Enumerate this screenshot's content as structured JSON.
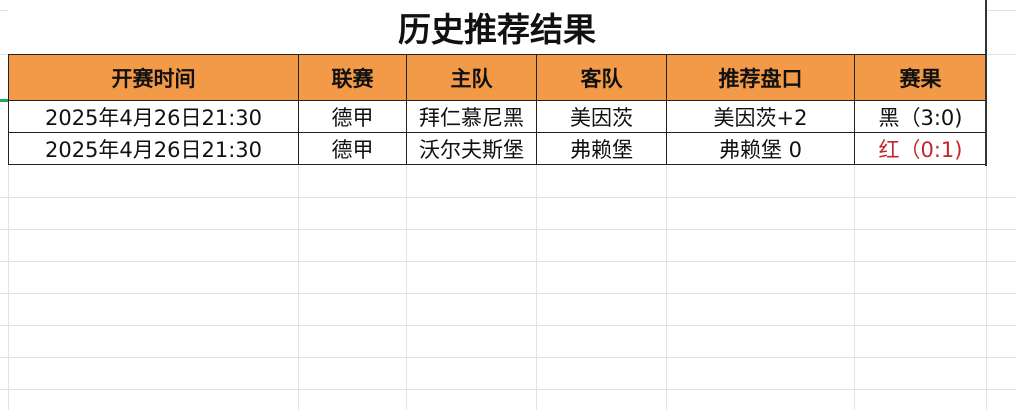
{
  "title": "历史推荐结果",
  "columns": [
    "开赛时间",
    "联赛",
    "主队",
    "客队",
    "推荐盘口",
    "赛果"
  ],
  "rows": [
    [
      "2025年4月26日21:30",
      "德甲",
      "拜仁慕尼黑",
      "美因茨",
      "美因茨+2",
      "黑（3:0)"
    ],
    [
      "2025年4月26日21:30",
      "德甲",
      "沃尔夫斯堡",
      "弗赖堡",
      "弗赖堡 0",
      "红（0:1)"
    ]
  ],
  "colors": {
    "header": "#f39a48",
    "result_red": "#c0282a",
    "selection": "#1fa865"
  }
}
